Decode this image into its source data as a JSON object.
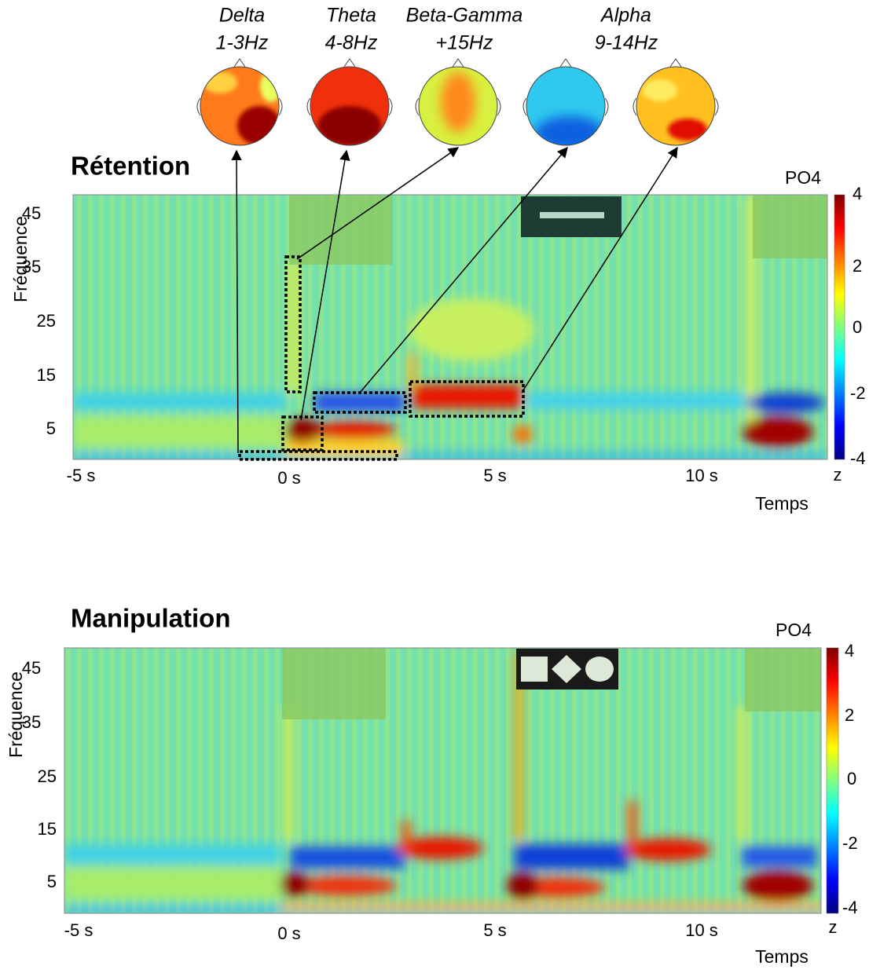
{
  "topomaps": [
    {
      "band": "Delta",
      "range": "1-3Hz"
    },
    {
      "band": "Theta",
      "range": "4-8Hz"
    },
    {
      "band": "Beta-Gamma",
      "range": "+15Hz"
    },
    {
      "band": "Alpha",
      "range": "9-14Hz"
    }
  ],
  "panels": [
    {
      "title": "Rétention",
      "channel": "PO4",
      "y_label": "Fréquence",
      "x_label": "Temps",
      "yticks": [
        45,
        35,
        25,
        15,
        5
      ],
      "xticks": [
        "-5 s",
        "0 s",
        "5 s",
        "10 s"
      ],
      "colorbar_ticks": [
        4,
        2,
        0,
        -2,
        -4
      ],
      "colorbar_unit": "z"
    },
    {
      "title": "Manipulation",
      "channel": "PO4",
      "y_label": "Fréquence",
      "x_label": "Temps",
      "yticks": [
        45,
        35,
        25,
        15,
        5
      ],
      "xticks": [
        "-5 s",
        "0 s",
        "5 s",
        "10 s"
      ],
      "colorbar_ticks": [
        4,
        2,
        0,
        -2,
        -4
      ],
      "colorbar_unit": "z"
    }
  ]
}
